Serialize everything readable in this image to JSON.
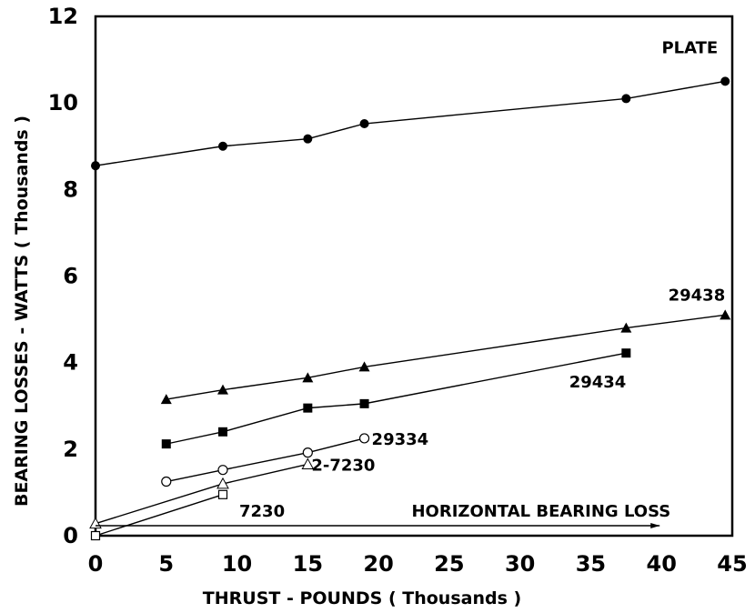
{
  "chart_data": {
    "type": "line",
    "title": "",
    "xlabel": "THRUST - POUNDS ( Thousands )",
    "ylabel": "BEARING LOSSES - WATTS ( Thousands )",
    "xlim": [
      0,
      45
    ],
    "ylim": [
      0,
      12
    ],
    "x_ticks": [
      0,
      5,
      10,
      15,
      20,
      25,
      30,
      35,
      40,
      45
    ],
    "y_ticks": [
      0,
      2,
      4,
      6,
      8,
      10,
      12
    ],
    "grid": false,
    "series": [
      {
        "name": "PLATE",
        "marker": "filled-circle",
        "x": [
          0,
          9,
          15,
          19,
          37.5,
          44.5
        ],
        "y": [
          8.55,
          9.0,
          9.17,
          9.52,
          10.1,
          10.5
        ]
      },
      {
        "name": "29438",
        "marker": "filled-triangle",
        "x": [
          5,
          9,
          15,
          19,
          37.5,
          44.5
        ],
        "y": [
          3.15,
          3.37,
          3.65,
          3.9,
          4.8,
          5.1
        ]
      },
      {
        "name": "29434",
        "marker": "filled-square",
        "x": [
          5,
          9,
          15,
          19,
          37.5
        ],
        "y": [
          2.12,
          2.4,
          2.95,
          3.05,
          4.22
        ]
      },
      {
        "name": "29334",
        "marker": "open-circle",
        "x": [
          5,
          9,
          15,
          19
        ],
        "y": [
          1.25,
          1.52,
          1.92,
          2.25
        ]
      },
      {
        "name": "2-7230",
        "marker": "open-triangle",
        "x": [
          0,
          9,
          15
        ],
        "y": [
          0.28,
          1.2,
          1.65
        ]
      },
      {
        "name": "7230",
        "marker": "open-square",
        "x": [
          0,
          9
        ],
        "y": [
          0.0,
          0.95
        ]
      }
    ],
    "annotations": [
      {
        "text": "HORIZONTAL BEARING LOSS",
        "arrow_from_x": 0,
        "arrow_to_x": 40,
        "y": 0
      }
    ]
  }
}
